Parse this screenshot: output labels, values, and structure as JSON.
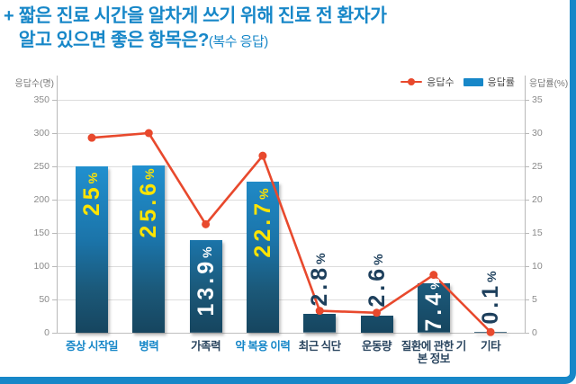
{
  "title": {
    "plus": "+",
    "line1_regular": "짧은 진료 시간을 알차게 쓰기 위해 ",
    "line1_bold": "진료 전 환자가",
    "line2_bold": "알고 있으면 좋은 항목",
    "line2_regular": "은?",
    "line2_paren": "(복수 응답)"
  },
  "legend": {
    "items": [
      {
        "label": "응답수",
        "marker": "line-dot",
        "color": "#e8492d"
      },
      {
        "label": "응답률",
        "marker": "bar",
        "color": "#1787c8"
      }
    ]
  },
  "chart_data": {
    "type": "bar+line combo",
    "categories": [
      "증상 시작일",
      "병력",
      "가족력",
      "약 복용 이력",
      "최근 식단",
      "운동량",
      "질환에 관한 기본 정보",
      "기타"
    ],
    "highlighted_categories": [
      true,
      true,
      false,
      true,
      false,
      false,
      false,
      false
    ],
    "series": [
      {
        "name": "응답수",
        "type": "line",
        "axis": "left",
        "values": [
          293,
          300,
          163,
          266,
          33,
          30,
          87,
          1
        ],
        "color": "#e8492d"
      },
      {
        "name": "응답률",
        "type": "bar",
        "axis": "right",
        "values": [
          25,
          25.6,
          13.9,
          22.7,
          2.8,
          2.6,
          7.4,
          0.1
        ],
        "labels": [
          "25%",
          "25.6%",
          "13.9%",
          "22.7%",
          "2.8%",
          "2.6%",
          "7.4%",
          "0.1%"
        ],
        "label_styles": [
          "inside-yellow",
          "inside-yellow",
          "inside-white",
          "inside-yellow",
          "above-navy",
          "above-navy",
          "inside-white",
          "above-navy"
        ]
      }
    ],
    "left_axis": {
      "label": "응답수(명)",
      "min": 0,
      "max": 350,
      "step": 50,
      "ticks": [
        0,
        50,
        100,
        150,
        200,
        250,
        300,
        350
      ]
    },
    "right_axis": {
      "label": "응답률(%)",
      "min": 0,
      "max": 35,
      "step": 5,
      "ticks": [
        0,
        5,
        10,
        15,
        20,
        25,
        30,
        35
      ]
    },
    "grid": true,
    "legend_position": "top-right"
  },
  "colors": {
    "brand_blue": "#1787c8",
    "bar_gradient_top": "#2190cf",
    "bar_gradient_bottom": "#16455f",
    "line_red": "#e8492d",
    "label_yellow": "#ffe400",
    "label_white": "#ffffff",
    "label_navy": "#1d3f5c",
    "category_navy": "#2b4660",
    "grid_gray": "#dcdcdc",
    "tick_text_gray": "#8a8a8a"
  }
}
